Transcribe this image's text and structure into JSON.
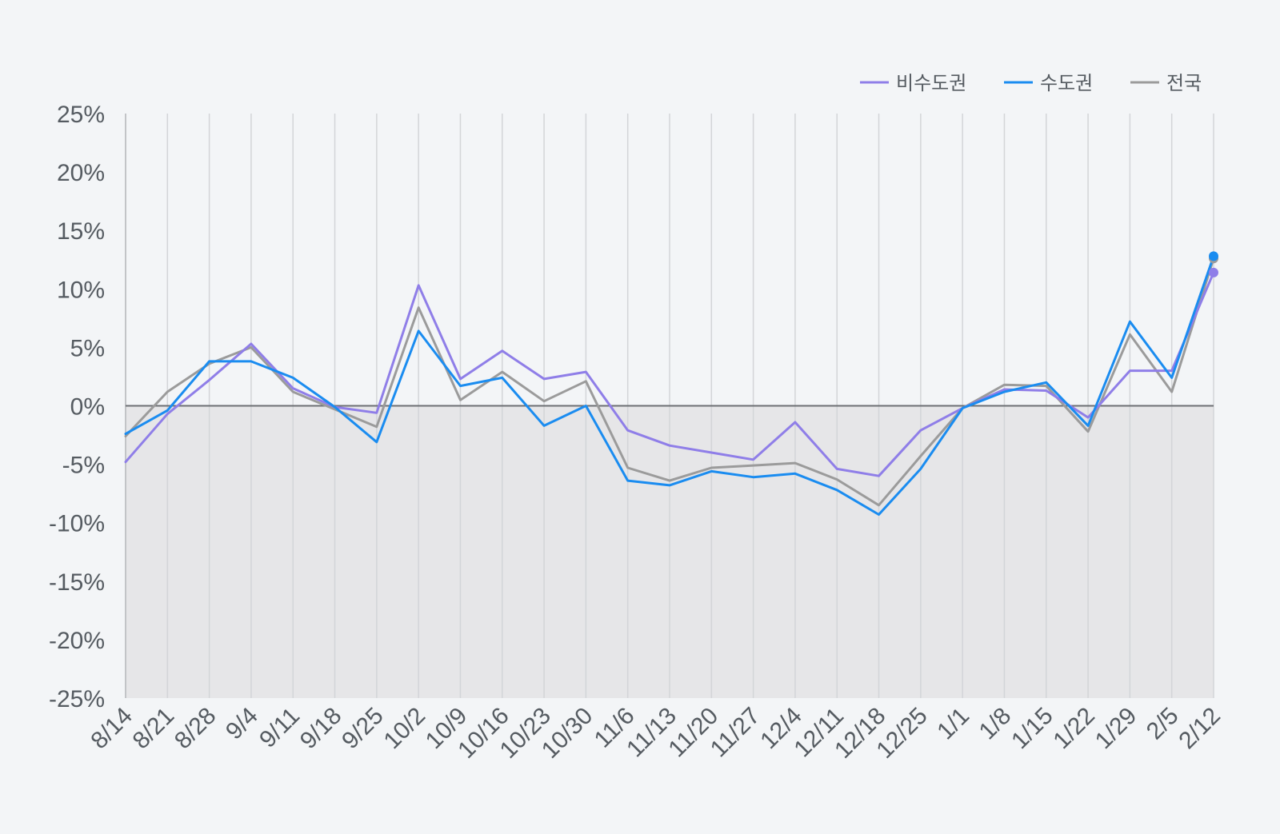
{
  "chart_data": {
    "type": "line",
    "categories": [
      "8/14",
      "8/21",
      "8/28",
      "9/4",
      "9/11",
      "9/18",
      "9/25",
      "10/2",
      "10/9",
      "10/16",
      "10/23",
      "10/30",
      "11/6",
      "11/13",
      "11/20",
      "11/27",
      "12/4",
      "12/11",
      "12/18",
      "12/25",
      "1/1",
      "1/8",
      "1/15",
      "1/22",
      "1/29",
      "2/5",
      "2/12"
    ],
    "ylim": [
      -25,
      25
    ],
    "yticks": [
      25,
      20,
      15,
      10,
      5,
      0,
      -5,
      -10,
      -15,
      -20,
      -25
    ],
    "ytick_labels": [
      "25%",
      "20%",
      "15%",
      "10%",
      "5%",
      "0%",
      "-5%",
      "-10%",
      "-15%",
      "-20%",
      "-25%"
    ],
    "negative_region_shaded": true,
    "grid": "vertical",
    "legend_position": "top-right",
    "series": [
      {
        "name": "비수도권",
        "color": "#8f7ee8",
        "values": [
          -4.8,
          -0.7,
          2.2,
          5.3,
          1.5,
          -0.1,
          -0.6,
          10.3,
          2.3,
          4.7,
          2.3,
          2.9,
          -2.1,
          -3.4,
          -4.0,
          -4.6,
          -1.4,
          -5.4,
          -6.0,
          -2.1,
          -0.2,
          1.4,
          1.3,
          -1.0,
          3.0,
          3.0,
          11.4
        ]
      },
      {
        "name": "수도권",
        "color": "#1a8cf0",
        "values": [
          -2.4,
          -0.4,
          3.8,
          3.8,
          2.4,
          -0.1,
          -3.1,
          6.4,
          1.7,
          2.4,
          -1.7,
          0.0,
          -6.4,
          -6.8,
          -5.6,
          -6.1,
          -5.8,
          -7.2,
          -9.3,
          -5.4,
          -0.2,
          1.2,
          2.0,
          -1.7,
          7.2,
          2.4,
          12.8
        ]
      },
      {
        "name": "전국",
        "color": "#9b9b9b",
        "values": [
          -2.6,
          1.2,
          3.6,
          5.0,
          1.2,
          -0.3,
          -1.8,
          8.4,
          0.5,
          2.9,
          0.4,
          2.1,
          -5.3,
          -6.4,
          -5.3,
          -5.1,
          -4.9,
          -6.3,
          -8.5,
          -4.3,
          -0.2,
          1.8,
          1.7,
          -2.2,
          6.1,
          1.2,
          12.6
        ]
      }
    ],
    "legend_order": [
      "비수도권",
      "수도권",
      "전국"
    ]
  }
}
